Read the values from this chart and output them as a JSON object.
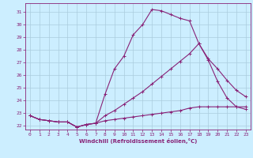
{
  "xlabel": "Windchill (Refroidissement éolien,°C)",
  "xlim": [
    -0.5,
    23.5
  ],
  "ylim": [
    21.7,
    31.7
  ],
  "yticks": [
    22,
    23,
    24,
    25,
    26,
    27,
    28,
    29,
    30,
    31
  ],
  "xticks": [
    0,
    1,
    2,
    3,
    4,
    5,
    6,
    7,
    8,
    9,
    10,
    11,
    12,
    13,
    14,
    15,
    16,
    17,
    18,
    19,
    20,
    21,
    22,
    23
  ],
  "bg_color": "#cceeff",
  "line_color": "#882277",
  "grid_color": "#aaccdd",
  "curve1_x": [
    0,
    1,
    2,
    3,
    4,
    5,
    6,
    7,
    8,
    9,
    10,
    11,
    12,
    13,
    14,
    15,
    16,
    17,
    18,
    19,
    20,
    21,
    22,
    23
  ],
  "curve1_y": [
    22.8,
    22.5,
    22.4,
    22.3,
    22.3,
    21.9,
    22.1,
    22.2,
    24.5,
    26.5,
    27.5,
    29.2,
    30.0,
    31.2,
    31.1,
    30.8,
    30.5,
    30.3,
    28.5,
    27.2,
    25.5,
    24.2,
    23.5,
    23.3
  ],
  "curve2_x": [
    0,
    1,
    2,
    3,
    4,
    5,
    6,
    7,
    8,
    9,
    10,
    11,
    12,
    13,
    14,
    15,
    16,
    17,
    18,
    19,
    20,
    21,
    22,
    23
  ],
  "curve2_y": [
    22.8,
    22.5,
    22.4,
    22.3,
    22.3,
    21.9,
    22.1,
    22.2,
    22.8,
    23.2,
    23.7,
    24.2,
    24.7,
    25.3,
    25.9,
    26.5,
    27.1,
    27.7,
    28.5,
    27.3,
    26.5,
    25.6,
    24.8,
    24.3
  ],
  "curve3_x": [
    0,
    1,
    2,
    3,
    4,
    5,
    6,
    7,
    8,
    9,
    10,
    11,
    12,
    13,
    14,
    15,
    16,
    17,
    18,
    19,
    20,
    21,
    22,
    23
  ],
  "curve3_y": [
    22.8,
    22.5,
    22.4,
    22.3,
    22.3,
    21.9,
    22.1,
    22.2,
    22.4,
    22.5,
    22.6,
    22.7,
    22.8,
    22.9,
    23.0,
    23.1,
    23.2,
    23.4,
    23.5,
    23.5,
    23.5,
    23.5,
    23.5,
    23.5
  ]
}
